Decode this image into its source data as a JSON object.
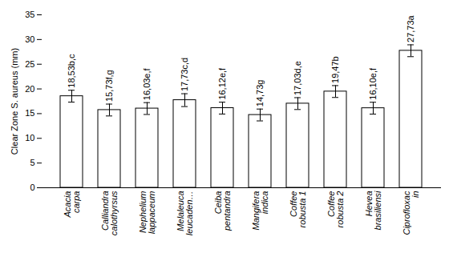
{
  "chart_data": {
    "type": "bar",
    "y_label": "Clear Zone S. aureus (mm)",
    "categories": [
      "Acacia\ncarpa",
      "Calliandra\ncalothyrsus",
      "Nephelium\nlappaceum",
      "Melaleuca\nleucaden…",
      "Ceiba\npentandra",
      "Mangifera\nindica",
      "Coffee\nrobusta 1",
      "Coffee\nrobusta 2",
      "Hevea\nbrasiliensi",
      "Ciprofloxac\nin"
    ],
    "values": [
      18.53,
      15.73,
      16.03,
      17.73,
      16.12,
      14.73,
      17.03,
      19.47,
      16.1,
      27.73
    ],
    "value_labels": [
      "18,53b,c",
      "15,73f,g",
      "16,03e,f",
      "17,73c,d",
      "16,12e,f",
      "14,73g",
      "17,03d,e",
      "19,47b",
      "16,10e,f",
      "27,73a"
    ],
    "errors": [
      1.2,
      1.2,
      1.2,
      1.3,
      1.2,
      1.2,
      1.2,
      1.2,
      1.2,
      1.2
    ],
    "color": "#ffffff",
    "ylim": [
      0,
      35
    ],
    "yticks": [
      0,
      5,
      10,
      15,
      20,
      25,
      30,
      35
    ],
    "grid": false,
    "data_labels": true
  }
}
